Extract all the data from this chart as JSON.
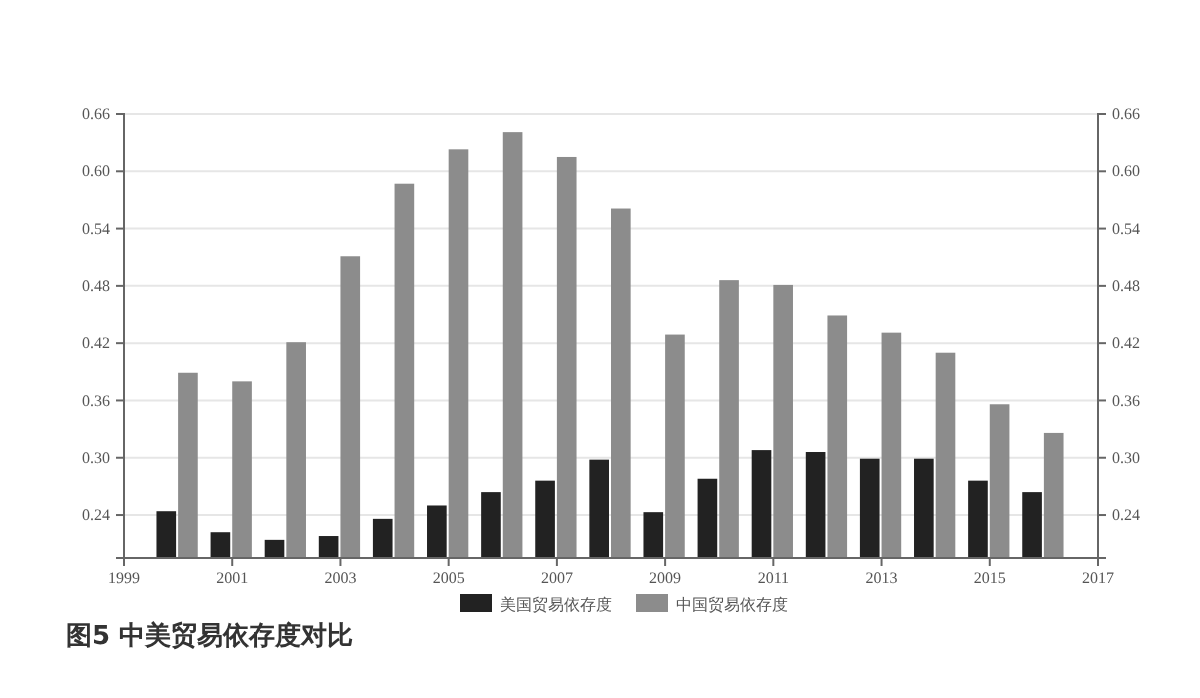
{
  "chart_data": {
    "type": "bar",
    "title": "图5 中美贸易依存度对比",
    "x": [
      2000,
      2001,
      2002,
      2003,
      2004,
      2005,
      2006,
      2007,
      2008,
      2009,
      2010,
      2011,
      2012,
      2013,
      2014,
      2015,
      2016
    ],
    "series": [
      {
        "name": "美国贸易依存度",
        "color": "#222222",
        "values": [
          0.244,
          0.222,
          0.214,
          0.218,
          0.236,
          0.25,
          0.264,
          0.276,
          0.298,
          0.243,
          0.278,
          0.308,
          0.306,
          0.299,
          0.299,
          0.276,
          0.264
        ]
      },
      {
        "name": "中国贸易依存度",
        "color": "#8c8c8c",
        "values": [
          0.389,
          0.38,
          0.421,
          0.511,
          0.587,
          0.623,
          0.641,
          0.615,
          0.561,
          0.429,
          0.486,
          0.481,
          0.449,
          0.431,
          0.41,
          0.356,
          0.326
        ]
      }
    ],
    "xlim": [
      1999,
      2017
    ],
    "xticks": [
      1999,
      2001,
      2003,
      2005,
      2007,
      2009,
      2011,
      2013,
      2015,
      2017
    ],
    "ylim": [
      0.195,
      0.66
    ],
    "yticks": [
      {
        "value": 0.24,
        "label": "0.24"
      },
      {
        "value": 0.3,
        "label": "0.30"
      },
      {
        "value": 0.36,
        "label": "0.36"
      },
      {
        "value": 0.42,
        "label": "0.42"
      },
      {
        "value": 0.48,
        "label": "0.48"
      },
      {
        "value": 0.54,
        "label": "0.54"
      },
      {
        "value": 0.6,
        "label": "0.60"
      },
      {
        "value": 0.66,
        "label": "0.66"
      }
    ],
    "y2lim": [
      0.195,
      0.66
    ],
    "y2ticks": [
      {
        "value": 0.24,
        "label": "0.24"
      },
      {
        "value": 0.3,
        "label": "0.30"
      },
      {
        "value": 0.36,
        "label": "0.36"
      },
      {
        "value": 0.42,
        "label": "0.42"
      },
      {
        "value": 0.48,
        "label": "0.48"
      },
      {
        "value": 0.54,
        "label": "0.54"
      },
      {
        "value": 0.6,
        "label": "0.60"
      },
      {
        "value": 0.66,
        "label": "0.66"
      }
    ],
    "grid": "y",
    "legend": "bottom"
  }
}
